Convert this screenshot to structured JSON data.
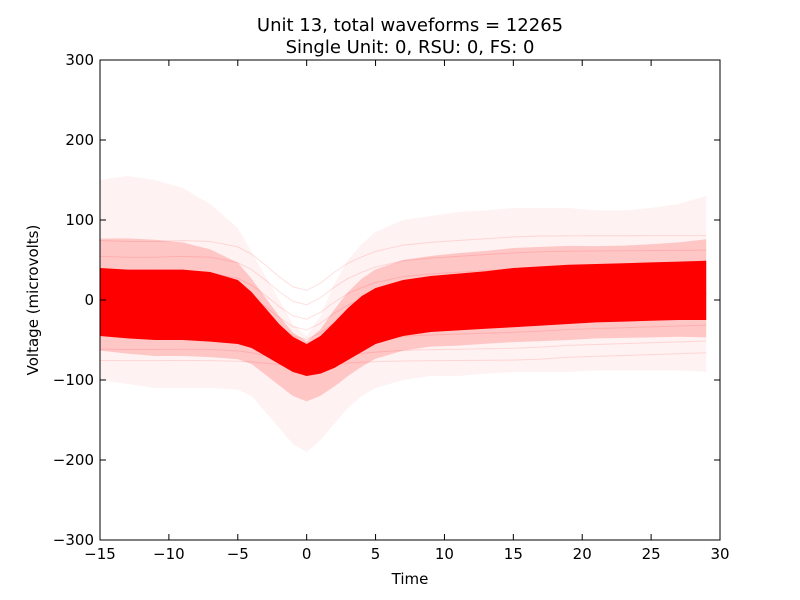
{
  "chart_data": {
    "type": "line",
    "title": "Unit 13, total waveforms = 12265",
    "subtitle": "Single Unit: 0, RSU: 0, FS: 0",
    "xlabel": "Time",
    "ylabel": "Voltage (microvolts)",
    "xlim": [
      -15,
      30
    ],
    "ylim": [
      -300,
      300
    ],
    "x_ticks": [
      "−15",
      "−10",
      "−5",
      "0",
      "5",
      "10",
      "15",
      "20",
      "25",
      "30"
    ],
    "y_ticks": [
      "300",
      "200",
      "100",
      "0",
      "−100",
      "−200",
      "−300"
    ],
    "grid": false,
    "color": "#ff0000",
    "x": [
      -15,
      -13,
      -11,
      -9,
      -7,
      -5,
      -4,
      -3,
      -2,
      -1,
      0,
      1,
      2,
      3,
      4,
      5,
      7,
      9,
      11,
      13,
      15,
      17,
      19,
      21,
      23,
      25,
      27,
      29
    ],
    "series": [
      {
        "values": [
          -5,
          -6,
          -6,
          -5,
          -6,
          -12,
          -20,
          -32,
          -45,
          -56,
          -60,
          -52,
          -40,
          -30,
          -23,
          -17,
          -10,
          -7,
          -5,
          -3,
          -1,
          1,
          3,
          4,
          5,
          6,
          7,
          8
        ]
      }
    ],
    "envelope": {
      "dense_upper": [
        40,
        38,
        38,
        38,
        35,
        25,
        10,
        -10,
        -30,
        -46,
        -55,
        -45,
        -28,
        -10,
        5,
        15,
        25,
        30,
        33,
        36,
        40,
        42,
        44,
        45,
        46,
        47,
        48,
        49
      ],
      "dense_lower": [
        -45,
        -48,
        -50,
        -50,
        -52,
        -55,
        -60,
        -70,
        -80,
        -90,
        -95,
        -92,
        -85,
        -75,
        -65,
        -55,
        -45,
        -40,
        -38,
        -36,
        -34,
        -32,
        -30,
        -28,
        -27,
        -26,
        -25,
        -25
      ],
      "faint_upper": [
        150,
        155,
        150,
        140,
        120,
        90,
        60,
        30,
        0,
        -30,
        -45,
        -20,
        20,
        50,
        70,
        85,
        100,
        105,
        110,
        112,
        115,
        115,
        115,
        112,
        112,
        115,
        120,
        130
      ],
      "faint_lower": [
        -100,
        -105,
        -110,
        -110,
        -110,
        -112,
        -120,
        -140,
        -160,
        -180,
        -190,
        -175,
        -155,
        -135,
        -120,
        -110,
        -100,
        -95,
        -95,
        -92,
        -90,
        -90,
        -90,
        -88,
        -88,
        -88,
        -88,
        -90
      ]
    }
  }
}
